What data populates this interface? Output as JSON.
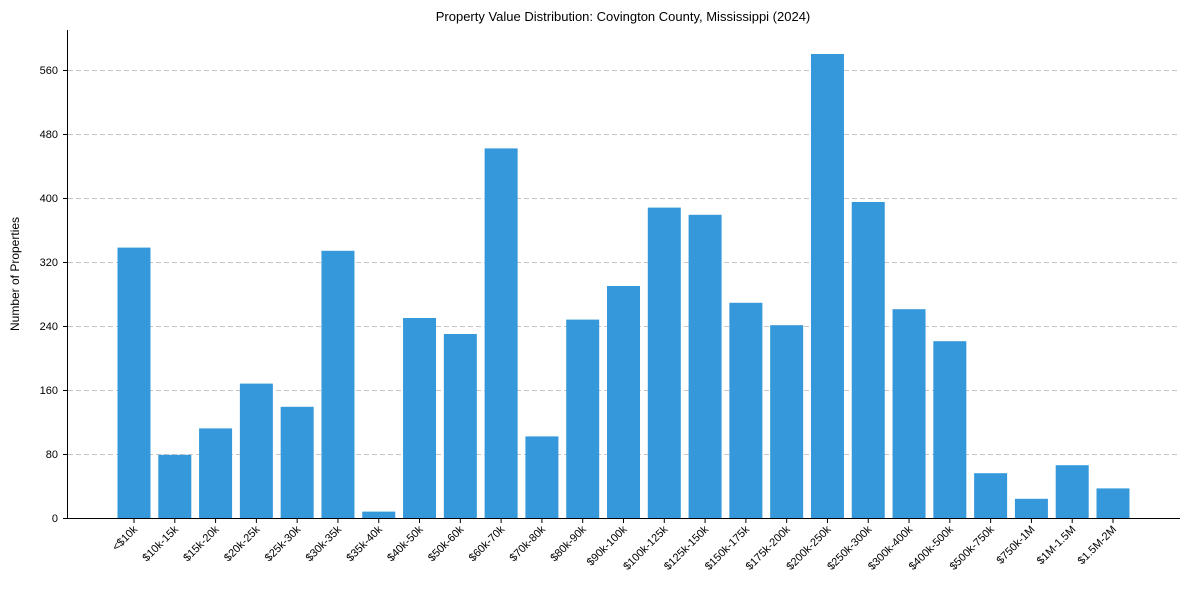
{
  "chart_data": {
    "type": "bar",
    "title": "Property Value Distribution: Covington County, Mississippi (2024)",
    "xlabel": "",
    "ylabel": "Number of Properties",
    "ylim": [
      0,
      610
    ],
    "yticks": [
      0,
      80,
      160,
      240,
      320,
      400,
      480,
      560
    ],
    "grid": "y, dashed",
    "bar_color": "#3498db",
    "categories": [
      "<$10k",
      "$10k-15k",
      "$15k-20k",
      "$20k-25k",
      "$25k-30k",
      "$30k-35k",
      "$35k-40k",
      "$40k-50k",
      "$50k-60k",
      "$60k-70k",
      "$70k-80k",
      "$80k-90k",
      "$90k-100k",
      "$100k-125k",
      "$125k-150k",
      "$150k-175k",
      "$175k-200k",
      "$200k-250k",
      "$250k-300k",
      "$300k-400k",
      "$400k-500k",
      "$500k-750k",
      "$750k-1M",
      "$1M-1.5M",
      "$1.5M-2M"
    ],
    "values": [
      338,
      79,
      112,
      168,
      139,
      334,
      8,
      250,
      230,
      462,
      102,
      248,
      290,
      388,
      379,
      269,
      241,
      580,
      395,
      261,
      221,
      56,
      24,
      66,
      37
    ]
  }
}
